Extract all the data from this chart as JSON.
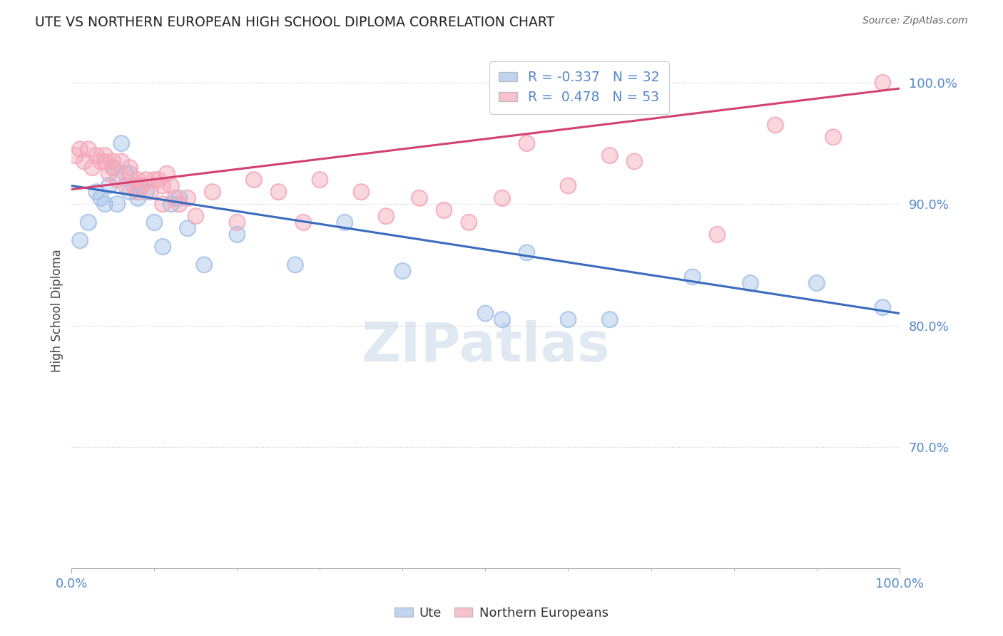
{
  "title": "UTE VS NORTHERN EUROPEAN HIGH SCHOOL DIPLOMA CORRELATION CHART",
  "source_text": "Source: ZipAtlas.com",
  "ylabel": "High School Diploma",
  "watermark": "ZIPatlas",
  "ute_R": -0.337,
  "ute_N": 32,
  "ne_R": 0.478,
  "ne_N": 53,
  "blue_color": "#a4c2e8",
  "pink_color": "#f4a8b8",
  "blue_line_color": "#3a6bbf",
  "pink_line_color": "#d44070",
  "axis_label_color": "#5588cc",
  "title_color": "#222222",
  "grid_color": "#cccccc",
  "ute_x": [
    1.0,
    2.0,
    3.0,
    3.5,
    4.0,
    4.5,
    5.0,
    5.5,
    6.0,
    6.5,
    7.0,
    8.0,
    9.0,
    10.0,
    11.0,
    12.0,
    13.0,
    14.0,
    16.0,
    20.0,
    27.0,
    33.0,
    40.0,
    50.0,
    52.0,
    55.0,
    60.0,
    65.0,
    75.0,
    82.0,
    90.0,
    98.0
  ],
  "ute_y": [
    87.0,
    88.5,
    91.0,
    90.5,
    90.0,
    91.5,
    93.0,
    90.0,
    95.0,
    92.5,
    91.0,
    90.5,
    91.0,
    88.5,
    86.5,
    90.0,
    90.5,
    88.0,
    85.0,
    87.5,
    85.0,
    88.5,
    84.5,
    81.0,
    80.5,
    86.0,
    80.5,
    80.5,
    84.0,
    83.5,
    83.5,
    81.5
  ],
  "ne_x": [
    0.5,
    1.0,
    1.5,
    2.0,
    2.5,
    3.0,
    3.5,
    4.0,
    4.0,
    4.5,
    5.0,
    5.0,
    5.5,
    6.0,
    6.5,
    7.0,
    7.0,
    7.5,
    8.0,
    8.0,
    8.5,
    9.0,
    9.5,
    10.0,
    10.5,
    11.0,
    11.0,
    11.5,
    12.0,
    12.5,
    13.0,
    14.0,
    15.0,
    17.0,
    20.0,
    22.0,
    25.0,
    28.0,
    30.0,
    35.0,
    38.0,
    42.0,
    45.0,
    48.0,
    52.0,
    55.0,
    60.0,
    65.0,
    68.0,
    78.0,
    85.0,
    92.0,
    98.0
  ],
  "ne_y": [
    94.0,
    94.5,
    93.5,
    94.5,
    93.0,
    94.0,
    93.5,
    94.0,
    93.5,
    92.5,
    93.0,
    93.5,
    92.0,
    93.5,
    91.5,
    93.0,
    92.5,
    91.5,
    91.0,
    92.0,
    91.5,
    92.0,
    91.0,
    92.0,
    92.0,
    91.5,
    90.0,
    92.5,
    91.5,
    90.5,
    90.0,
    90.5,
    89.0,
    91.0,
    88.5,
    92.0,
    91.0,
    88.5,
    92.0,
    91.0,
    89.0,
    90.5,
    89.5,
    88.5,
    90.5,
    95.0,
    91.5,
    94.0,
    93.5,
    87.5,
    96.5,
    95.5,
    100.0
  ],
  "xlim": [
    0.0,
    100.0
  ],
  "ylim": [
    60.0,
    102.5
  ],
  "yticks": [
    70.0,
    80.0,
    90.0,
    100.0
  ],
  "ytick_labels": [
    "70.0%",
    "80.0%",
    "90.0%",
    "100.0%"
  ],
  "xtick_labels": [
    "0.0%",
    "100.0%"
  ]
}
